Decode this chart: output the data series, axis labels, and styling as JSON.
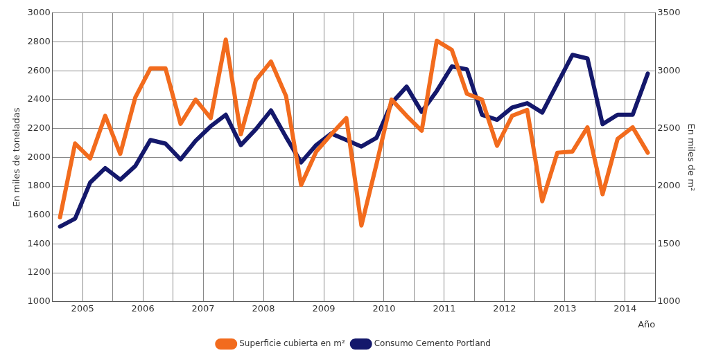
{
  "chart_data": {
    "type": "line",
    "xlabel": "Año",
    "ylabel": "En miles de toneladas",
    "y2label": "En miles de m²",
    "x": [
      2005.125,
      2005.375,
      2005.625,
      2005.875,
      2006.125,
      2006.375,
      2006.625,
      2006.875,
      2007.125,
      2007.375,
      2007.625,
      2007.875,
      2008.125,
      2008.375,
      2008.625,
      2008.875,
      2009.125,
      2009.375,
      2009.625,
      2009.875,
      2010.125,
      2010.375,
      2010.625,
      2010.875,
      2011.125,
      2011.375,
      2011.625,
      2011.875,
      2012.125,
      2012.375,
      2012.625,
      2012.875,
      2013.125,
      2013.375,
      2013.625,
      2013.875,
      2014.125,
      2014.375,
      2014.625,
      2014.875
    ],
    "series": [
      {
        "name": "Superficie cubierta en m²",
        "color": "#f26b1d",
        "axis": "y2",
        "values": [
          1730,
          2370,
          2240,
          2610,
          2280,
          2770,
          3020,
          3020,
          2540,
          2750,
          2590,
          3270,
          2450,
          2920,
          3080,
          2780,
          2010,
          2300,
          2450,
          2590,
          1660,
          2190,
          2750,
          2610,
          2480,
          3260,
          3180,
          2800,
          2750,
          2350,
          2610,
          2660,
          1870,
          2290,
          2300,
          2510,
          1930,
          2410,
          2510,
          2290
        ]
      },
      {
        "name": "Consumo Cemento Portland",
        "color": "#14186b",
        "values": [
          1520,
          1575,
          1825,
          1925,
          1845,
          1940,
          2120,
          2095,
          1985,
          2115,
          2215,
          2295,
          2085,
          2195,
          2325,
          2140,
          1965,
          2085,
          2165,
          2120,
          2075,
          2135,
          2375,
          2490,
          2315,
          2460,
          2630,
          2610,
          2295,
          2260,
          2345,
          2375,
          2310,
          2510,
          2710,
          2685,
          2230,
          2295,
          2295,
          2580
        ]
      }
    ],
    "xlim": [
      2005,
      2015
    ],
    "xticks": [
      {
        "value": 2005,
        "label": null
      },
      {
        "value": 2005.5,
        "label": "2005"
      },
      {
        "value": 2006,
        "label": null
      },
      {
        "value": 2006.5,
        "label": "2006"
      },
      {
        "value": 2007,
        "label": null
      },
      {
        "value": 2007.5,
        "label": "2007"
      },
      {
        "value": 2008,
        "label": null
      },
      {
        "value": 2008.5,
        "label": "2008"
      },
      {
        "value": 2009,
        "label": null
      },
      {
        "value": 2009.5,
        "label": "2009"
      },
      {
        "value": 2010,
        "label": null
      },
      {
        "value": 2010.5,
        "label": "2010"
      },
      {
        "value": 2011,
        "label": null
      },
      {
        "value": 2011.5,
        "label": "2011"
      },
      {
        "value": 2012,
        "label": null
      },
      {
        "value": 2012.5,
        "label": "2012"
      },
      {
        "value": 2013,
        "label": null
      },
      {
        "value": 2013.5,
        "label": "2013"
      },
      {
        "value": 2014,
        "label": null
      },
      {
        "value": 2014.5,
        "label": "2014"
      },
      {
        "value": 2015,
        "label": null
      }
    ],
    "ylim": [
      1000,
      3000
    ],
    "yticks": [
      1000,
      1200,
      1400,
      1600,
      1800,
      2000,
      2200,
      2400,
      2600,
      2800,
      3000
    ],
    "y2lim": [
      1000,
      3500
    ],
    "y2ticks": [
      1000,
      1500,
      2000,
      2500,
      3000,
      3500
    ],
    "grid": true,
    "legend": "bottom",
    "marker": "none",
    "line_style": "solid"
  }
}
